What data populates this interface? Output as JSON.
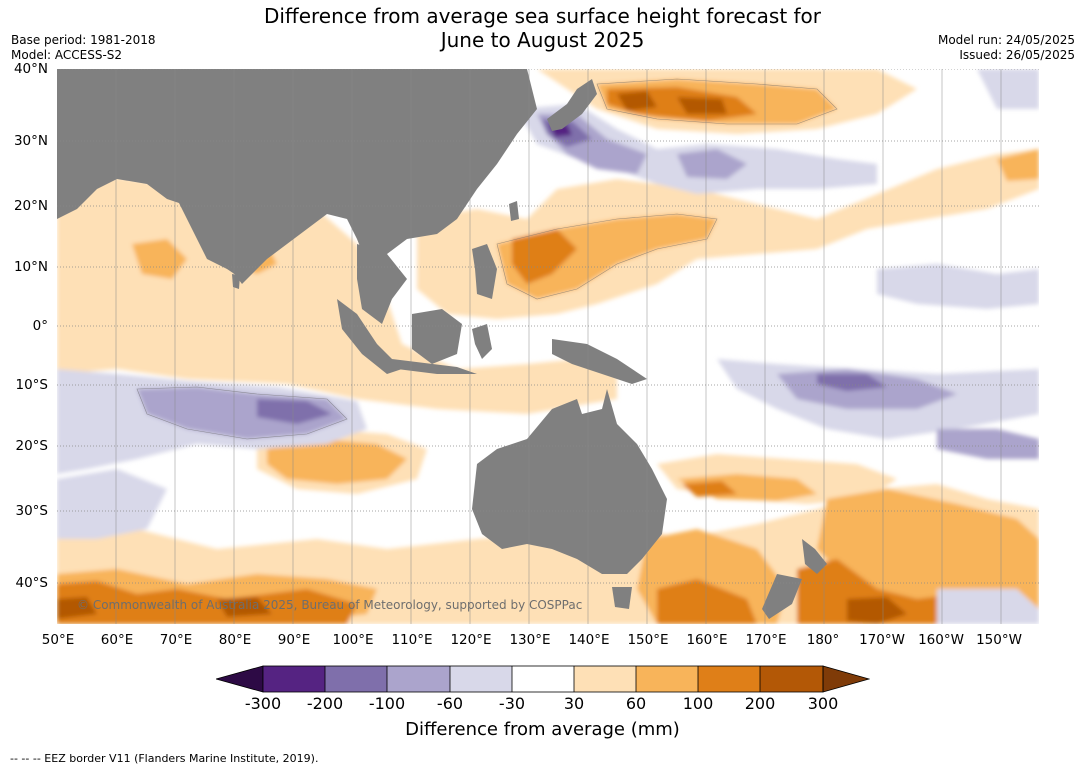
{
  "title_line1": "Difference from average sea surface height forecast for",
  "title_line2": "June to August 2025",
  "base_period": "Base period: 1981-2018",
  "model": "Model: ACCESS-S2",
  "model_run": "Model run: 24/05/2025",
  "issued": "Issued: 26/05/2025",
  "lat_labels": [
    "40°N",
    "30°N",
    "20°N",
    "10°N",
    "0°",
    "10°S",
    "20°S",
    "30°S",
    "40°S"
  ],
  "lon_labels": [
    "50°E",
    "60°E",
    "70°E",
    "80°E",
    "90°E",
    "100°E",
    "110°E",
    "120°E",
    "130°E",
    "140°E",
    "150°E",
    "160°E",
    "170°E",
    "180°",
    "170°W",
    "160°W",
    "150°W"
  ],
  "copyright": "© Commonwealth of Australia 2025, Bureau of Meteorology, supported by COSPPac",
  "colorbar": {
    "ticks": [
      "-300",
      "-200",
      "-100",
      "-60",
      "-30",
      "30",
      "60",
      "100",
      "200",
      "300"
    ],
    "colors": {
      "under": "#2d0a45",
      "bins": [
        "#552382",
        "#7f6fab",
        "#aba4cc",
        "#d8d8e9",
        "#ffffff",
        "#fee0b6",
        "#f8b45a",
        "#df7f18",
        "#b35806"
      ],
      "over": "#7f3b08"
    },
    "label": "Difference from average (mm)"
  },
  "colors": {
    "land": "#808080",
    "grid": "#888888"
  },
  "footer": "--  --  -- EEZ border V11 (Flanders Marine Institute, 2019)."
}
